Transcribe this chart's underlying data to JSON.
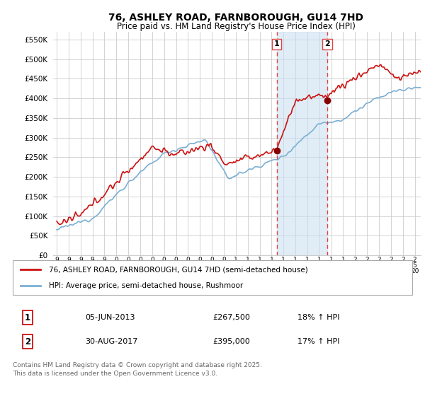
{
  "title": "76, ASHLEY ROAD, FARNBOROUGH, GU14 7HD",
  "subtitle": "Price paid vs. HM Land Registry's House Price Index (HPI)",
  "ylim": [
    0,
    570000
  ],
  "yticks": [
    0,
    50000,
    100000,
    150000,
    200000,
    250000,
    300000,
    350000,
    400000,
    450000,
    500000,
    550000
  ],
  "ytick_labels": [
    "£0",
    "£50K",
    "£100K",
    "£150K",
    "£200K",
    "£250K",
    "£300K",
    "£350K",
    "£400K",
    "£450K",
    "£500K",
    "£550K"
  ],
  "hpi_color": "#7bafd4",
  "price_color": "#cc1111",
  "vline_color": "#dd4444",
  "vline1_year": 2013.43,
  "vline2_year": 2017.66,
  "marker1_price": 267500,
  "marker1_year": 2013.43,
  "marker2_price": 395000,
  "marker2_year": 2017.66,
  "legend_price_label": "76, ASHLEY ROAD, FARNBOROUGH, GU14 7HD (semi-detached house)",
  "legend_hpi_label": "HPI: Average price, semi-detached house, Rushmoor",
  "footnote": "Contains HM Land Registry data © Crown copyright and database right 2025.\nThis data is licensed under the Open Government Licence v3.0.",
  "table_row1": [
    "1",
    "05-JUN-2013",
    "£267,500",
    "18% ↑ HPI"
  ],
  "table_row2": [
    "2",
    "30-AUG-2017",
    "£395,000",
    "17% ↑ HPI"
  ],
  "background_color": "#ffffff",
  "plot_bg_color": "#ffffff",
  "grid_color": "#cccccc",
  "start_year": 1995,
  "end_year": 2025
}
